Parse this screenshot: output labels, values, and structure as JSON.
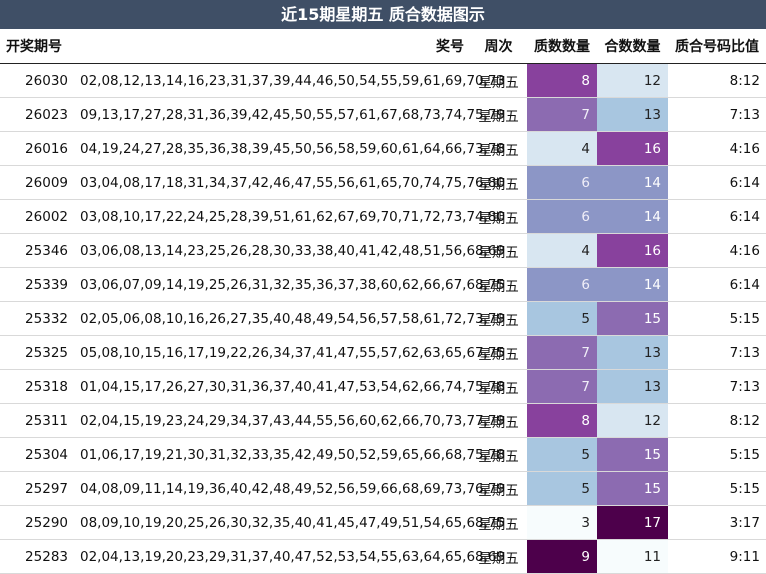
{
  "title": "近15期星期五 质合数据图示",
  "columns": [
    "开奖期号",
    "奖号",
    "周次",
    "质数数量",
    "合数数量",
    "质合号码比值"
  ],
  "chart_data": {
    "type": "table",
    "title": "近15期星期五 质合数据图示",
    "columns": [
      "开奖期号",
      "奖号",
      "周次",
      "质数数量",
      "合数数量",
      "质合号码比值"
    ],
    "rows": [
      {
        "issue": "26030",
        "numbers": "02,08,12,13,14,16,23,31,37,39,44,46,50,54,55,59,61,69,70,73",
        "weekday": "星期五",
        "prime": 8,
        "composite": 12,
        "ratio": "8:12"
      },
      {
        "issue": "26023",
        "numbers": "09,13,17,27,28,31,36,39,42,45,50,55,57,61,67,68,73,74,75,79",
        "weekday": "星期五",
        "prime": 7,
        "composite": 13,
        "ratio": "7:13"
      },
      {
        "issue": "26016",
        "numbers": "04,19,24,27,28,35,36,38,39,45,50,56,58,59,60,61,64,66,73,78",
        "weekday": "星期五",
        "prime": 4,
        "composite": 16,
        "ratio": "4:16"
      },
      {
        "issue": "26009",
        "numbers": "03,04,08,17,18,31,34,37,42,46,47,55,56,61,65,70,74,75,76,80",
        "weekday": "星期五",
        "prime": 6,
        "composite": 14,
        "ratio": "6:14"
      },
      {
        "issue": "26002",
        "numbers": "03,08,10,17,22,24,25,28,39,51,61,62,67,69,70,71,72,73,74,80",
        "weekday": "星期五",
        "prime": 6,
        "composite": 14,
        "ratio": "6:14"
      },
      {
        "issue": "25346",
        "numbers": "03,06,08,13,14,23,25,26,28,30,33,38,40,41,42,48,51,56,68,69",
        "weekday": "星期五",
        "prime": 4,
        "composite": 16,
        "ratio": "4:16"
      },
      {
        "issue": "25339",
        "numbers": "03,06,07,09,14,19,25,26,31,32,35,36,37,38,60,62,66,67,68,75",
        "weekday": "星期五",
        "prime": 6,
        "composite": 14,
        "ratio": "6:14"
      },
      {
        "issue": "25332",
        "numbers": "02,05,06,08,10,16,26,27,35,40,48,49,54,56,57,58,61,72,73,79",
        "weekday": "星期五",
        "prime": 5,
        "composite": 15,
        "ratio": "5:15"
      },
      {
        "issue": "25325",
        "numbers": "05,08,10,15,16,17,19,22,26,34,37,41,47,55,57,62,63,65,67,75",
        "weekday": "星期五",
        "prime": 7,
        "composite": 13,
        "ratio": "7:13"
      },
      {
        "issue": "25318",
        "numbers": "01,04,15,17,26,27,30,31,36,37,40,41,47,53,54,62,66,74,75,78",
        "weekday": "星期五",
        "prime": 7,
        "composite": 13,
        "ratio": "7:13"
      },
      {
        "issue": "25311",
        "numbers": "02,04,15,19,23,24,29,34,37,43,44,55,56,60,62,66,70,73,77,79",
        "weekday": "星期五",
        "prime": 8,
        "composite": 12,
        "ratio": "8:12"
      },
      {
        "issue": "25304",
        "numbers": "01,06,17,19,21,30,31,32,33,35,42,49,50,52,59,65,66,68,75,78",
        "weekday": "星期五",
        "prime": 5,
        "composite": 15,
        "ratio": "5:15"
      },
      {
        "issue": "25297",
        "numbers": "04,08,09,11,14,19,36,40,42,48,49,52,56,59,66,68,69,73,76,79",
        "weekday": "星期五",
        "prime": 5,
        "composite": 15,
        "ratio": "5:15"
      },
      {
        "issue": "25290",
        "numbers": "08,09,10,19,20,25,26,30,32,35,40,41,45,47,49,51,54,65,68,75",
        "weekday": "星期五",
        "prime": 3,
        "composite": 17,
        "ratio": "3:17"
      },
      {
        "issue": "25283",
        "numbers": "02,04,13,19,20,23,29,31,37,40,47,52,53,54,55,63,64,65,68,69",
        "weekday": "星期五",
        "prime": 9,
        "composite": 11,
        "ratio": "9:11"
      }
    ]
  },
  "colors": {
    "title_bg": "#3f4f66",
    "prime_scale": {
      "3": "#f7fcfd",
      "4": "#d8e6f1",
      "5": "#a8c6e0",
      "6": "#8c96c6",
      "7": "#8c6bb1",
      "8": "#88419d",
      "9": "#4d004b"
    },
    "composite_scale": {
      "11": "#f7fcfd",
      "12": "#d8e6f1",
      "13": "#a8c6e0",
      "14": "#8c96c6",
      "15": "#8c6bb1",
      "16": "#88419d",
      "17": "#4d004b"
    }
  }
}
